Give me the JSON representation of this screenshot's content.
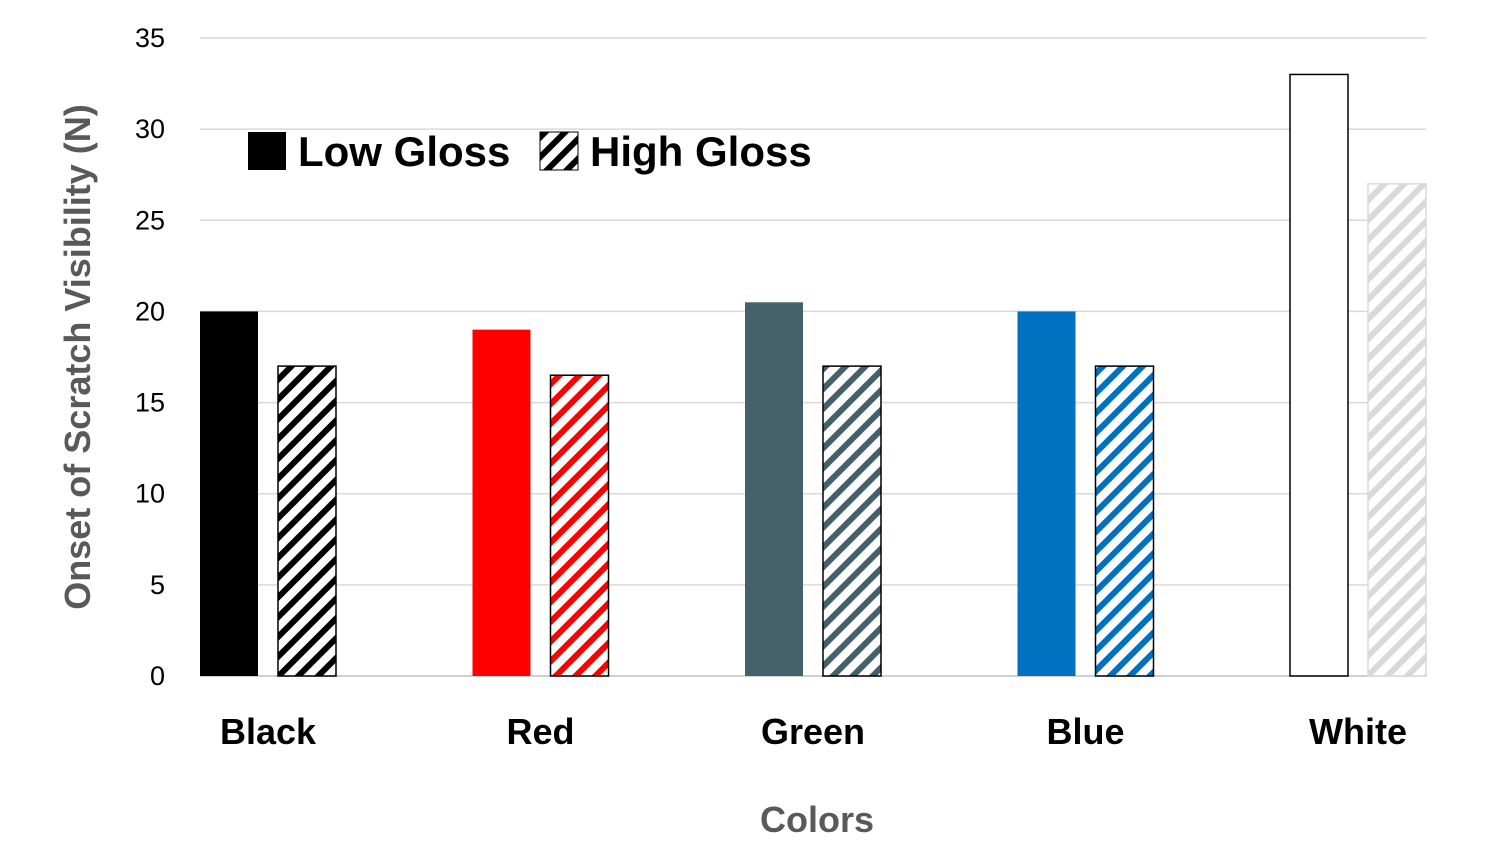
{
  "chart_data": {
    "type": "bar",
    "title": "",
    "xlabel": "Colors",
    "ylabel": "Onset of Scratch Visibility  (N)",
    "categories": [
      "Black",
      "Red",
      "Green",
      "Blue",
      "White"
    ],
    "category_colors": [
      "#000000",
      "#ff0000",
      "#44606b",
      "#0070c0",
      "#ffffff"
    ],
    "high_gloss_pattern_colors": [
      "#000000",
      "#ff0000",
      "#44606b",
      "#0070c0",
      "#d9d9d9"
    ],
    "series": [
      {
        "name": "Low Gloss",
        "style": "solid",
        "values": [
          20,
          19,
          20.5,
          20,
          33
        ]
      },
      {
        "name": "High Gloss",
        "style": "diagonal-hatch",
        "values": [
          17,
          16.5,
          17,
          17,
          27
        ]
      }
    ],
    "ylim": [
      0,
      35
    ],
    "yticks": [
      0,
      5,
      10,
      15,
      20,
      25,
      30,
      35
    ],
    "grid": true,
    "legend_placement": "top-left"
  }
}
